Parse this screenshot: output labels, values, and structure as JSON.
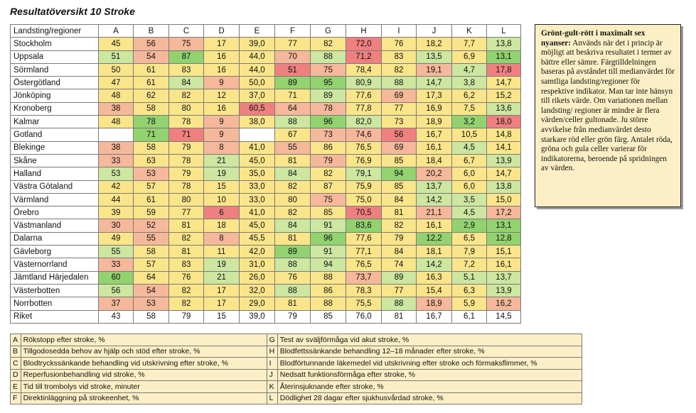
{
  "title": "Resultatöversikt 10 Stroke",
  "colors": {
    "red": "#f08080",
    "orange": "#f6b89a",
    "yellow": "#fbe58a",
    "lightgreen": "#cde6a0",
    "green": "#92d26f",
    "white": "#ffffff"
  },
  "header": [
    "Landsting/regioner",
    "A",
    "B",
    "C",
    "D",
    "E",
    "F",
    "G",
    "H",
    "I",
    "J",
    "K",
    "L"
  ],
  "rows": [
    {
      "region": "Stockholm",
      "cells": [
        [
          "45",
          "y"
        ],
        [
          "56",
          "o"
        ],
        [
          "75",
          "o"
        ],
        [
          "17",
          "y"
        ],
        [
          "39,0",
          "y"
        ],
        [
          "77",
          "y"
        ],
        [
          "82",
          "y"
        ],
        [
          "72,0",
          "r"
        ],
        [
          "76",
          "y"
        ],
        [
          "18,2",
          "y"
        ],
        [
          "7,7",
          "y"
        ],
        [
          "13,8",
          "lg"
        ]
      ]
    },
    {
      "region": "Uppsala",
      "cells": [
        [
          "51",
          "lg"
        ],
        [
          "54",
          "o"
        ],
        [
          "87",
          "g"
        ],
        [
          "16",
          "y"
        ],
        [
          "44,0",
          "y"
        ],
        [
          "70",
          "o"
        ],
        [
          "88",
          "lg"
        ],
        [
          "71,2",
          "r"
        ],
        [
          "83",
          "y"
        ],
        [
          "13,5",
          "lg"
        ],
        [
          "6,9",
          "y"
        ],
        [
          "13,1",
          "g"
        ]
      ]
    },
    {
      "region": "Sörmland",
      "cells": [
        [
          "50",
          "y"
        ],
        [
          "61",
          "y"
        ],
        [
          "83",
          "y"
        ],
        [
          "16",
          "y"
        ],
        [
          "44,0",
          "y"
        ],
        [
          "51",
          "r"
        ],
        [
          "75",
          "o"
        ],
        [
          "78,4",
          "y"
        ],
        [
          "82",
          "y"
        ],
        [
          "19,1",
          "o"
        ],
        [
          "4,7",
          "lg"
        ],
        [
          "17,8",
          "r"
        ]
      ]
    },
    {
      "region": "Östergötland",
      "cells": [
        [
          "47",
          "y"
        ],
        [
          "61",
          "y"
        ],
        [
          "84",
          "lg"
        ],
        [
          "9",
          "o"
        ],
        [
          "50,0",
          "y"
        ],
        [
          "89",
          "g"
        ],
        [
          "95",
          "g"
        ],
        [
          "80,9",
          "lg"
        ],
        [
          "88",
          "lg"
        ],
        [
          "14,7",
          "lg"
        ],
        [
          "3,8",
          "lg"
        ],
        [
          "14,7",
          "y"
        ]
      ]
    },
    {
      "region": "Jönköping",
      "cells": [
        [
          "48",
          "y"
        ],
        [
          "62",
          "y"
        ],
        [
          "82",
          "y"
        ],
        [
          "12",
          "y"
        ],
        [
          "37,0",
          "y"
        ],
        [
          "71",
          "y"
        ],
        [
          "89",
          "lg"
        ],
        [
          "77,6",
          "y"
        ],
        [
          "69",
          "o"
        ],
        [
          "17,3",
          "y"
        ],
        [
          "6,2",
          "y"
        ],
        [
          "15,2",
          "y"
        ]
      ]
    },
    {
      "region": "Kronoberg",
      "cells": [
        [
          "38",
          "o"
        ],
        [
          "58",
          "y"
        ],
        [
          "80",
          "y"
        ],
        [
          "16",
          "y"
        ],
        [
          "60,5",
          "r"
        ],
        [
          "64",
          "o"
        ],
        [
          "78",
          "o"
        ],
        [
          "77,8",
          "y"
        ],
        [
          "77",
          "y"
        ],
        [
          "16,9",
          "y"
        ],
        [
          "7,5",
          "y"
        ],
        [
          "13,6",
          "lg"
        ]
      ]
    },
    {
      "region": "Kalmar",
      "cells": [
        [
          "48",
          "y"
        ],
        [
          "78",
          "g"
        ],
        [
          "78",
          "y"
        ],
        [
          "9",
          "o"
        ],
        [
          "38,0",
          "y"
        ],
        [
          "88",
          "lg"
        ],
        [
          "96",
          "g"
        ],
        [
          "82,0",
          "lg"
        ],
        [
          "73",
          "y"
        ],
        [
          "18,9",
          "y"
        ],
        [
          "3,2",
          "g"
        ],
        [
          "18,0",
          "r"
        ]
      ]
    },
    {
      "region": "Gotland",
      "cells": [
        [
          "",
          "w"
        ],
        [
          "71",
          "g"
        ],
        [
          "71",
          "r"
        ],
        [
          "9",
          "o"
        ],
        [
          "",
          "w"
        ],
        [
          "67",
          "y"
        ],
        [
          "73",
          "o"
        ],
        [
          "74,6",
          "o"
        ],
        [
          "56",
          "r"
        ],
        [
          "16,7",
          "y"
        ],
        [
          "10,5",
          "y"
        ],
        [
          "14,8",
          "y"
        ]
      ]
    },
    {
      "region": "Blekinge",
      "cells": [
        [
          "38",
          "o"
        ],
        [
          "58",
          "y"
        ],
        [
          "79",
          "y"
        ],
        [
          "8",
          "o"
        ],
        [
          "41,0",
          "y"
        ],
        [
          "55",
          "o"
        ],
        [
          "86",
          "y"
        ],
        [
          "76,5",
          "y"
        ],
        [
          "69",
          "o"
        ],
        [
          "16,1",
          "y"
        ],
        [
          "4,5",
          "lg"
        ],
        [
          "14,1",
          "y"
        ]
      ]
    },
    {
      "region": "Skåne",
      "cells": [
        [
          "33",
          "o"
        ],
        [
          "63",
          "y"
        ],
        [
          "78",
          "y"
        ],
        [
          "21",
          "lg"
        ],
        [
          "45,0",
          "y"
        ],
        [
          "81",
          "y"
        ],
        [
          "79",
          "o"
        ],
        [
          "76,9",
          "y"
        ],
        [
          "85",
          "y"
        ],
        [
          "18,4",
          "y"
        ],
        [
          "6,7",
          "y"
        ],
        [
          "13,9",
          "lg"
        ]
      ]
    },
    {
      "region": "Halland",
      "cells": [
        [
          "53",
          "lg"
        ],
        [
          "53",
          "o"
        ],
        [
          "79",
          "y"
        ],
        [
          "19",
          "lg"
        ],
        [
          "35,0",
          "y"
        ],
        [
          "84",
          "lg"
        ],
        [
          "82",
          "y"
        ],
        [
          "79,1",
          "lg"
        ],
        [
          "94",
          "g"
        ],
        [
          "20,2",
          "o"
        ],
        [
          "6,0",
          "y"
        ],
        [
          "14,7",
          "y"
        ]
      ]
    },
    {
      "region": "Västra Götaland",
      "cells": [
        [
          "42",
          "y"
        ],
        [
          "57",
          "y"
        ],
        [
          "78",
          "y"
        ],
        [
          "15",
          "y"
        ],
        [
          "33,0",
          "y"
        ],
        [
          "82",
          "y"
        ],
        [
          "87",
          "y"
        ],
        [
          "75,9",
          "y"
        ],
        [
          "85",
          "y"
        ],
        [
          "13,7",
          "lg"
        ],
        [
          "6,0",
          "y"
        ],
        [
          "13,8",
          "lg"
        ]
      ]
    },
    {
      "region": "Värmland",
      "cells": [
        [
          "44",
          "y"
        ],
        [
          "61",
          "y"
        ],
        [
          "80",
          "y"
        ],
        [
          "10",
          "y"
        ],
        [
          "33,0",
          "y"
        ],
        [
          "80",
          "y"
        ],
        [
          "75",
          "o"
        ],
        [
          "75,0",
          "y"
        ],
        [
          "84",
          "y"
        ],
        [
          "14,2",
          "lg"
        ],
        [
          "3,5",
          "lg"
        ],
        [
          "15,0",
          "y"
        ]
      ]
    },
    {
      "region": "Örebro",
      "cells": [
        [
          "39",
          "y"
        ],
        [
          "59",
          "y"
        ],
        [
          "77",
          "y"
        ],
        [
          "6",
          "r"
        ],
        [
          "41,0",
          "y"
        ],
        [
          "82",
          "y"
        ],
        [
          "85",
          "y"
        ],
        [
          "70,5",
          "r"
        ],
        [
          "81",
          "y"
        ],
        [
          "21,1",
          "o"
        ],
        [
          "4,5",
          "lg"
        ],
        [
          "17,2",
          "o"
        ]
      ]
    },
    {
      "region": "Västmanland",
      "cells": [
        [
          "30",
          "o"
        ],
        [
          "52",
          "o"
        ],
        [
          "81",
          "y"
        ],
        [
          "18",
          "y"
        ],
        [
          "45,0",
          "y"
        ],
        [
          "84",
          "lg"
        ],
        [
          "91",
          "lg"
        ],
        [
          "83,6",
          "g"
        ],
        [
          "82",
          "y"
        ],
        [
          "16,1",
          "y"
        ],
        [
          "2,9",
          "g"
        ],
        [
          "13,1",
          "g"
        ]
      ]
    },
    {
      "region": "Dalarna",
      "cells": [
        [
          "49",
          "y"
        ],
        [
          "55",
          "o"
        ],
        [
          "82",
          "y"
        ],
        [
          "8",
          "o"
        ],
        [
          "45,5",
          "y"
        ],
        [
          "81",
          "y"
        ],
        [
          "96",
          "g"
        ],
        [
          "77,6",
          "y"
        ],
        [
          "79",
          "y"
        ],
        [
          "12,2",
          "g"
        ],
        [
          "6,5",
          "y"
        ],
        [
          "12,8",
          "g"
        ]
      ]
    },
    {
      "region": "Gävleborg",
      "cells": [
        [
          "55",
          "lg"
        ],
        [
          "58",
          "y"
        ],
        [
          "81",
          "y"
        ],
        [
          "11",
          "y"
        ],
        [
          "42,0",
          "y"
        ],
        [
          "89",
          "g"
        ],
        [
          "91",
          "lg"
        ],
        [
          "77,1",
          "y"
        ],
        [
          "84",
          "y"
        ],
        [
          "18,1",
          "y"
        ],
        [
          "7,9",
          "y"
        ],
        [
          "15,1",
          "y"
        ]
      ]
    },
    {
      "region": "Västernorrland",
      "cells": [
        [
          "33",
          "o"
        ],
        [
          "57",
          "y"
        ],
        [
          "83",
          "y"
        ],
        [
          "19",
          "lg"
        ],
        [
          "31,0",
          "y"
        ],
        [
          "88",
          "lg"
        ],
        [
          "94",
          "lg"
        ],
        [
          "76,5",
          "y"
        ],
        [
          "74",
          "y"
        ],
        [
          "14,2",
          "lg"
        ],
        [
          "7,2",
          "y"
        ],
        [
          "16,1",
          "y"
        ]
      ]
    },
    {
      "region": "Jämtland Härjedalen",
      "cells": [
        [
          "60",
          "g"
        ],
        [
          "64",
          "y"
        ],
        [
          "76",
          "y"
        ],
        [
          "21",
          "lg"
        ],
        [
          "26,0",
          "y"
        ],
        [
          "76",
          "y"
        ],
        [
          "88",
          "y"
        ],
        [
          "73,7",
          "o"
        ],
        [
          "89",
          "lg"
        ],
        [
          "16,3",
          "y"
        ],
        [
          "5,1",
          "lg"
        ],
        [
          "13,7",
          "lg"
        ]
      ]
    },
    {
      "region": "Västerbotten",
      "cells": [
        [
          "56",
          "lg"
        ],
        [
          "54",
          "o"
        ],
        [
          "82",
          "y"
        ],
        [
          "17",
          "y"
        ],
        [
          "32,0",
          "y"
        ],
        [
          "88",
          "lg"
        ],
        [
          "86",
          "y"
        ],
        [
          "78,3",
          "y"
        ],
        [
          "77",
          "y"
        ],
        [
          "15,4",
          "y"
        ],
        [
          "6,3",
          "y"
        ],
        [
          "13,9",
          "lg"
        ]
      ]
    },
    {
      "region": "Norrbotten",
      "cells": [
        [
          "37",
          "o"
        ],
        [
          "53",
          "o"
        ],
        [
          "82",
          "y"
        ],
        [
          "17",
          "y"
        ],
        [
          "29,0",
          "y"
        ],
        [
          "81",
          "y"
        ],
        [
          "88",
          "y"
        ],
        [
          "75,5",
          "y"
        ],
        [
          "88",
          "lg"
        ],
        [
          "18,9",
          "o"
        ],
        [
          "5,9",
          "y"
        ],
        [
          "16,2",
          "o"
        ]
      ]
    },
    {
      "region": "Riket",
      "cells": [
        [
          "43",
          "w"
        ],
        [
          "58",
          "w"
        ],
        [
          "79",
          "w"
        ],
        [
          "15",
          "w"
        ],
        [
          "39,0",
          "w"
        ],
        [
          "79",
          "w"
        ],
        [
          "85",
          "w"
        ],
        [
          "76,0",
          "w"
        ],
        [
          "81",
          "w"
        ],
        [
          "16,7",
          "w"
        ],
        [
          "6,1",
          "w"
        ],
        [
          "14,5",
          "w"
        ]
      ]
    }
  ],
  "note": {
    "heading": "Grönt-gult-rött i maximalt sex nyanser:",
    "body": "Används när det i princip är möjligt att beskriva resultatet i termer av bättre eller sämre. Färgtilldelningen baseras på avståndet till medianvärdet för samtliga landsting/regioner för respektive indikator. Man tar inte hänsyn till rikets värde. Om variationen mellan landsting/ regioner är mindre är flera värden/celler gultonade. Ju större avvikelse från medianvärdet desto starkare röd eller grön färg. Antalet röda, gröna och gula celler varierar för indikatorerna, beroende på spridningen av värden."
  },
  "legend_left": [
    {
      "key": "A",
      "text": "Rökstopp efter stroke, %"
    },
    {
      "key": "B",
      "text": "Tillgodosedda behov av hjälp och stöd efter stroke, %"
    },
    {
      "key": "C",
      "text": "Blodtryckssänkande behandling vid utskrivning efter stroke, %"
    },
    {
      "key": "D",
      "text": "Reperfusionbehandling vid stroke, %"
    },
    {
      "key": "E",
      "text": "Tid till trombolys vid stroke, minuter"
    },
    {
      "key": "F",
      "text": "Direktinläggning på strokeenhet, %"
    }
  ],
  "legend_right": [
    {
      "key": "G",
      "text": "Test av sväljförmåga vid akut stroke, %"
    },
    {
      "key": "H",
      "text": "Blodfettssänkande behandling 12–18 månader efter stroke, %"
    },
    {
      "key": "I",
      "text": "Blodförtunnande läkemedel vid utskrivning efter stroke och förmaksflimmer, %"
    },
    {
      "key": "J",
      "text": "Nedsatt funktionsförmåga efter stroke, %"
    },
    {
      "key": "K",
      "text": "Återinsjuknande efter stroke, %"
    },
    {
      "key": "L",
      "text": "Dödlighet 28 dagar efter sjukhusvårdad stroke, %"
    }
  ]
}
